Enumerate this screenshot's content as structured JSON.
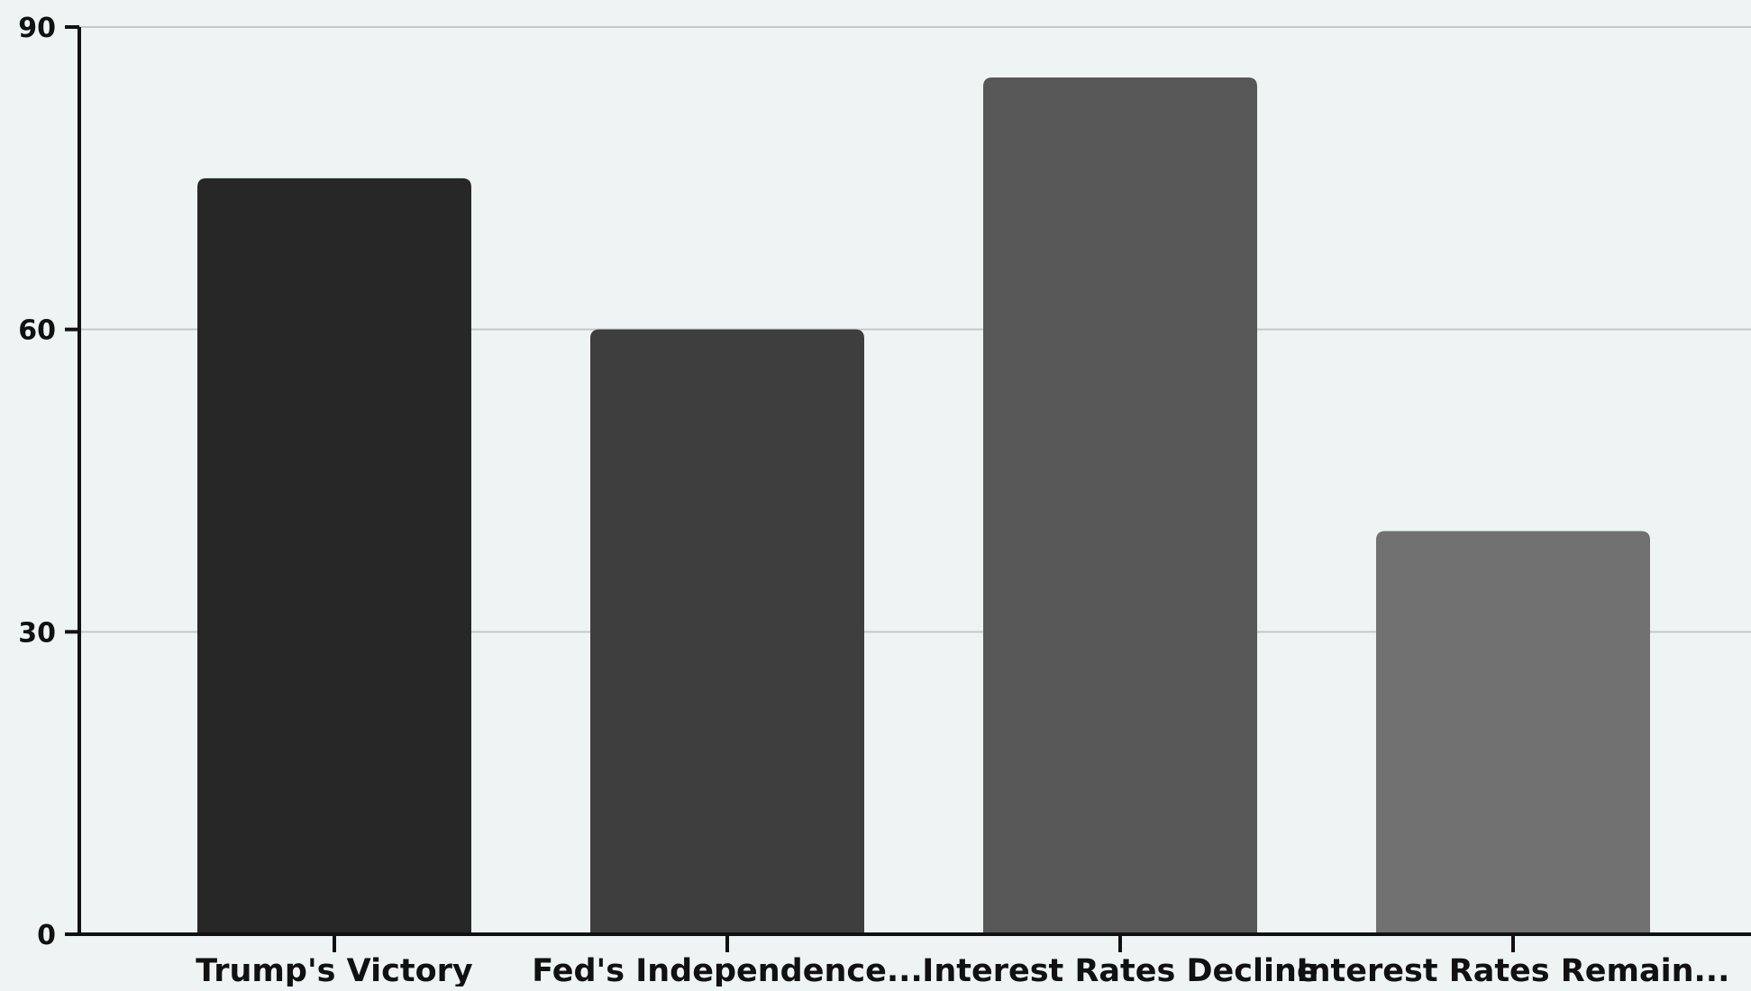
{
  "chart_data": {
    "type": "bar",
    "title": "",
    "xlabel": "",
    "ylabel": "",
    "categories": [
      "Trump's Victory",
      "Fed's Independence...",
      "Interest Rates Decline",
      "Interest Rates Remain..."
    ],
    "values": [
      75,
      60,
      85,
      40
    ],
    "ylim": [
      0,
      90
    ],
    "yticks": [
      0,
      30,
      60,
      90
    ],
    "grid": true,
    "legend": "none",
    "bar_colors": [
      "#272727",
      "#3e3e3e",
      "#575757",
      "#717171"
    ]
  },
  "colors": {
    "background": "#eef4f4",
    "grid": "#c3c9c9",
    "axis": "#111111"
  }
}
